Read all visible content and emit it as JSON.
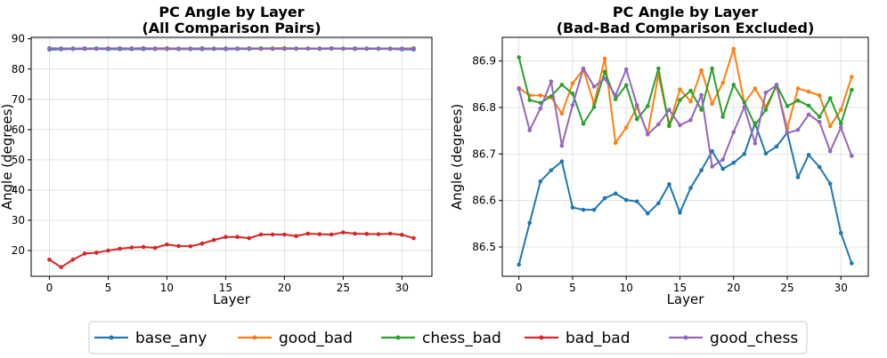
{
  "legend": {
    "entries": [
      {
        "name": "base_any",
        "color": "#1f77b4"
      },
      {
        "name": "good_bad",
        "color": "#ff7f0e"
      },
      {
        "name": "chess_bad",
        "color": "#2ca02c"
      },
      {
        "name": "bad_bad",
        "color": "#d62728"
      },
      {
        "name": "good_chess",
        "color": "#9467bd"
      }
    ],
    "placement": "bottom-center"
  },
  "chart_data": [
    {
      "type": "line",
      "title": "PC Angle by Layer",
      "subtitle": "(All Comparison Pairs)",
      "xlabel": "Layer",
      "ylabel": "Angle (degrees)",
      "xlim": [
        -1.55,
        32.55
      ],
      "ylim": [
        11.5,
        90.5
      ],
      "xticks": [
        0,
        5,
        10,
        15,
        20,
        25,
        30
      ],
      "yticks": [
        20,
        30,
        40,
        50,
        60,
        70,
        80,
        90
      ],
      "grid": true,
      "x": [
        0,
        1,
        2,
        3,
        4,
        5,
        6,
        7,
        8,
        9,
        10,
        11,
        12,
        13,
        14,
        15,
        16,
        17,
        18,
        19,
        20,
        21,
        22,
        23,
        24,
        25,
        26,
        27,
        28,
        29,
        30,
        31
      ],
      "series": [
        {
          "name": "base_any",
          "color": "#1f77b4",
          "values": [
            86.46,
            86.55,
            86.64,
            86.66,
            86.68,
            86.58,
            86.58,
            86.58,
            86.6,
            86.61,
            86.6,
            86.6,
            86.57,
            86.59,
            86.63,
            86.57,
            86.63,
            86.66,
            86.71,
            86.67,
            86.68,
            86.7,
            86.77,
            86.7,
            86.71,
            86.75,
            86.65,
            86.7,
            86.67,
            86.63,
            86.53,
            86.46
          ]
        },
        {
          "name": "good_bad",
          "color": "#ff7f0e",
          "values": [
            86.84,
            86.83,
            86.83,
            86.82,
            86.79,
            86.86,
            86.88,
            86.81,
            86.9,
            86.72,
            86.76,
            86.8,
            86.74,
            86.87,
            86.76,
            86.84,
            86.81,
            86.88,
            86.81,
            86.85,
            86.93,
            86.81,
            86.84,
            86.8,
            86.85,
            86.75,
            86.84,
            86.83,
            86.83,
            86.76,
            86.79,
            86.87
          ]
        },
        {
          "name": "chess_bad",
          "color": "#2ca02c",
          "values": [
            86.91,
            86.82,
            86.81,
            86.82,
            86.85,
            86.83,
            86.76,
            86.8,
            86.88,
            86.82,
            86.85,
            86.78,
            86.8,
            86.88,
            86.76,
            86.82,
            86.84,
            86.8,
            86.88,
            86.78,
            86.85,
            86.81,
            86.76,
            86.8,
            86.85,
            86.8,
            86.82,
            86.8,
            86.78,
            86.82,
            86.76,
            86.84
          ]
        },
        {
          "name": "bad_bad",
          "color": "#d62728",
          "values": [
            17.0,
            14.5,
            17.0,
            19.0,
            19.3,
            20.0,
            20.6,
            21.0,
            21.2,
            20.9,
            22.0,
            21.5,
            21.4,
            22.3,
            23.5,
            24.5,
            24.5,
            24.1,
            25.3,
            25.3,
            25.3,
            24.8,
            25.6,
            25.4,
            25.3,
            26.0,
            25.6,
            25.5,
            25.4,
            25.6,
            25.2,
            24.1
          ]
        },
        {
          "name": "good_chess",
          "color": "#9467bd",
          "values": [
            86.84,
            86.75,
            86.8,
            86.86,
            86.72,
            86.81,
            86.88,
            86.84,
            86.86,
            86.83,
            86.88,
            86.81,
            86.74,
            86.76,
            86.79,
            86.76,
            86.77,
            86.83,
            86.67,
            86.69,
            86.75,
            86.8,
            86.72,
            86.83,
            86.85,
            86.75,
            86.75,
            86.79,
            86.77,
            86.71,
            86.76,
            86.7
          ]
        }
      ]
    },
    {
      "type": "line",
      "title": "PC Angle by Layer",
      "subtitle": "(Bad-Bad Comparison Excluded)",
      "xlabel": "Layer",
      "ylabel": "Angle (degrees)",
      "xlim": [
        -1.55,
        32.55
      ],
      "ylim": [
        86.437,
        86.951
      ],
      "xticks": [
        0,
        5,
        10,
        15,
        20,
        25,
        30
      ],
      "yticks": [
        86.5,
        86.6,
        86.7,
        86.8,
        86.9
      ],
      "ytick_labels": [
        "86.5",
        "86.6",
        "86.7",
        "86.8",
        "86.9"
      ],
      "grid": true,
      "x": [
        0,
        1,
        2,
        3,
        4,
        5,
        6,
        7,
        8,
        9,
        10,
        11,
        12,
        13,
        14,
        15,
        16,
        17,
        18,
        19,
        20,
        21,
        22,
        23,
        24,
        25,
        26,
        27,
        28,
        29,
        30,
        31
      ],
      "series": [
        {
          "name": "base_any",
          "color": "#1f77b4",
          "values": [
            86.462,
            86.552,
            86.641,
            86.665,
            86.684,
            86.585,
            86.58,
            86.58,
            86.605,
            86.615,
            86.601,
            86.598,
            86.572,
            86.594,
            86.635,
            86.574,
            86.627,
            86.665,
            86.706,
            86.668,
            86.681,
            86.7,
            86.766,
            86.701,
            86.716,
            86.746,
            86.65,
            86.698,
            86.672,
            86.636,
            86.53,
            86.465
          ]
        },
        {
          "name": "good_bad",
          "color": "#ff7f0e",
          "values": [
            86.842,
            86.826,
            86.826,
            86.822,
            86.787,
            86.852,
            86.882,
            86.808,
            86.905,
            86.724,
            86.757,
            86.801,
            86.744,
            86.871,
            86.762,
            86.839,
            86.813,
            86.88,
            86.808,
            86.853,
            86.926,
            86.81,
            86.841,
            86.802,
            86.846,
            86.755,
            86.841,
            86.834,
            86.826,
            86.76,
            86.795,
            86.866
          ]
        },
        {
          "name": "chess_bad",
          "color": "#2ca02c",
          "values": [
            86.908,
            86.816,
            86.81,
            86.824,
            86.849,
            86.83,
            86.765,
            86.801,
            86.877,
            86.818,
            86.848,
            86.775,
            86.803,
            86.884,
            86.76,
            86.816,
            86.836,
            86.795,
            86.884,
            86.78,
            86.849,
            86.811,
            86.762,
            86.795,
            86.849,
            86.803,
            86.815,
            86.804,
            86.78,
            86.82,
            86.765,
            86.838
          ]
        },
        {
          "name": "good_chess",
          "color": "#9467bd",
          "values": [
            86.84,
            86.751,
            86.798,
            86.856,
            86.718,
            86.805,
            86.884,
            86.845,
            86.862,
            86.826,
            86.882,
            86.805,
            86.742,
            86.764,
            86.795,
            86.762,
            86.773,
            86.827,
            86.673,
            86.688,
            86.747,
            86.801,
            86.723,
            86.832,
            86.848,
            86.745,
            86.752,
            86.785,
            86.769,
            86.706,
            86.757,
            86.696
          ]
        }
      ]
    }
  ]
}
